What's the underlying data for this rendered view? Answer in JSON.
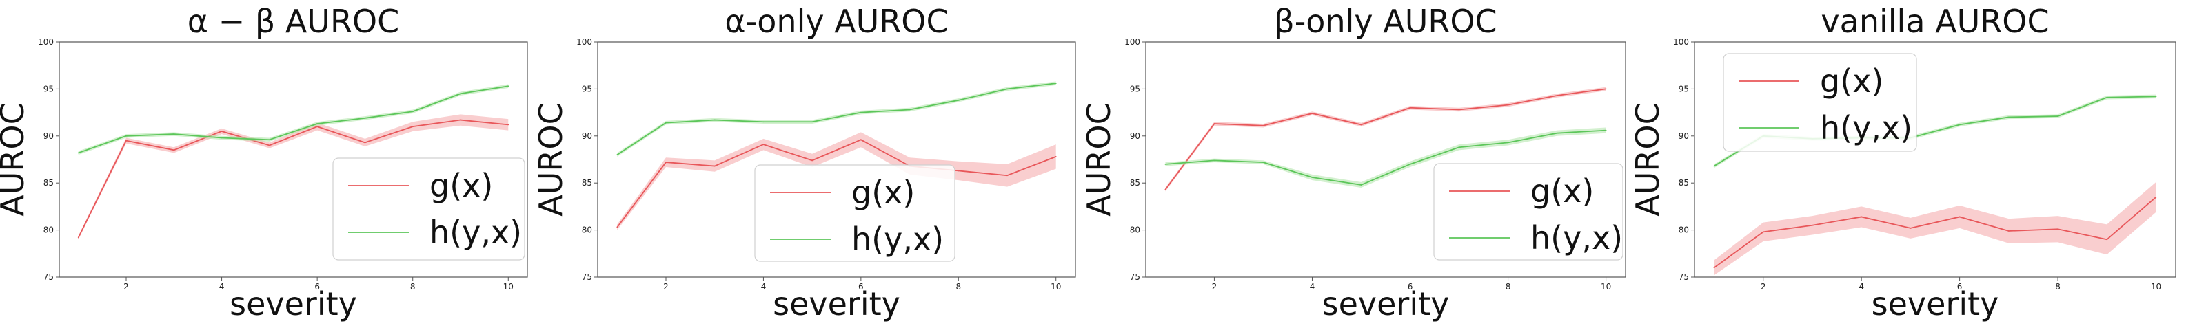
{
  "figure": {
    "background": "#ffffff"
  },
  "colors": {
    "g": "#e8575a",
    "h": "#5cc65a",
    "g_band": "#f4a6a8",
    "h_band": "#aee3a8",
    "axis": "#555555"
  },
  "chart_data": [
    {
      "type": "line",
      "title": "α − β AUROC",
      "xlabel": "severity",
      "ylabel": "AUROC",
      "xlim": [
        0.6,
        10.4
      ],
      "ylim": [
        75,
        100
      ],
      "xticks": [
        2,
        4,
        6,
        8,
        10
      ],
      "yticks": [
        75,
        80,
        85,
        90,
        95,
        100
      ],
      "grid": false,
      "legend": {
        "placement": "lower-right",
        "entries": [
          "g(x)",
          "h(y,x)"
        ]
      },
      "x": [
        1,
        2,
        3,
        4,
        5,
        6,
        7,
        8,
        9,
        10
      ],
      "series": [
        {
          "name": "g(x)",
          "key": "g",
          "values": [
            79.2,
            89.5,
            88.5,
            90.5,
            89.0,
            91.0,
            89.3,
            91.0,
            91.7,
            91.2
          ],
          "band": [
            0.2,
            0.3,
            0.3,
            0.3,
            0.3,
            0.4,
            0.4,
            0.5,
            0.6,
            0.6
          ]
        },
        {
          "name": "h(y,x)",
          "key": "h",
          "values": [
            88.2,
            90.0,
            90.2,
            89.8,
            89.6,
            91.3,
            91.9,
            92.6,
            94.5,
            95.3
          ],
          "band": [
            0.2,
            0.2,
            0.2,
            0.2,
            0.2,
            0.2,
            0.2,
            0.2,
            0.2,
            0.2
          ]
        }
      ]
    },
    {
      "type": "line",
      "title": "α-only AUROC",
      "xlabel": "severity",
      "ylabel": "AUROC",
      "xlim": [
        0.6,
        10.4
      ],
      "ylim": [
        75,
        100
      ],
      "xticks": [
        2,
        4,
        6,
        8,
        10
      ],
      "yticks": [
        75,
        80,
        85,
        90,
        95,
        100
      ],
      "grid": false,
      "legend": {
        "placement": "lower-center",
        "entries": [
          "g(x)",
          "h(y,x)"
        ]
      },
      "x": [
        1,
        2,
        3,
        4,
        5,
        6,
        7,
        8,
        9,
        10
      ],
      "series": [
        {
          "name": "g(x)",
          "key": "g",
          "values": [
            80.3,
            87.2,
            86.8,
            89.1,
            87.4,
            89.6,
            86.8,
            86.3,
            85.8,
            87.8
          ],
          "band": [
            0.3,
            0.5,
            0.6,
            0.6,
            0.7,
            0.8,
            0.9,
            1.0,
            1.2,
            1.3
          ]
        },
        {
          "name": "h(y,x)",
          "key": "h",
          "values": [
            88.0,
            91.4,
            91.7,
            91.5,
            91.5,
            92.5,
            92.8,
            93.8,
            95.0,
            95.6
          ],
          "band": [
            0.2,
            0.2,
            0.2,
            0.2,
            0.2,
            0.2,
            0.2,
            0.2,
            0.2,
            0.2
          ]
        }
      ]
    },
    {
      "type": "line",
      "title": "β-only AUROC",
      "xlabel": "severity",
      "ylabel": "AUROC",
      "xlim": [
        0.6,
        10.4
      ],
      "ylim": [
        75,
        100
      ],
      "xticks": [
        2,
        4,
        6,
        8,
        10
      ],
      "yticks": [
        75,
        80,
        85,
        90,
        95,
        100
      ],
      "grid": false,
      "legend": {
        "placement": "lower-right",
        "entries": [
          "g(x)",
          "h(y,x)"
        ]
      },
      "x": [
        1,
        2,
        3,
        4,
        5,
        6,
        7,
        8,
        9,
        10
      ],
      "series": [
        {
          "name": "g(x)",
          "key": "g",
          "values": [
            84.3,
            91.3,
            91.1,
            92.4,
            91.2,
            93.0,
            92.8,
            93.3,
            94.3,
            95.0
          ],
          "band": [
            0.2,
            0.2,
            0.2,
            0.2,
            0.2,
            0.2,
            0.2,
            0.2,
            0.2,
            0.2
          ]
        },
        {
          "name": "h(y,x)",
          "key": "h",
          "values": [
            87.0,
            87.4,
            87.2,
            85.6,
            84.8,
            87.0,
            88.8,
            89.3,
            90.3,
            90.6
          ],
          "band": [
            0.2,
            0.2,
            0.2,
            0.3,
            0.3,
            0.3,
            0.3,
            0.3,
            0.3,
            0.3
          ]
        }
      ]
    },
    {
      "type": "line",
      "title": "vanilla AUROC",
      "xlabel": "severity",
      "ylabel": "AUROC",
      "xlim": [
        0.6,
        10.4
      ],
      "ylim": [
        75,
        100
      ],
      "xticks": [
        2,
        4,
        6,
        8,
        10
      ],
      "yticks": [
        75,
        80,
        85,
        90,
        95,
        100
      ],
      "grid": false,
      "legend": {
        "placement": "upper-left",
        "entries": [
          "g(x)",
          "h(y,x)"
        ]
      },
      "x": [
        1,
        2,
        3,
        4,
        5,
        6,
        7,
        8,
        9,
        10
      ],
      "series": [
        {
          "name": "g(x)",
          "key": "g",
          "values": [
            76.0,
            79.8,
            80.5,
            81.4,
            80.2,
            81.4,
            79.9,
            80.1,
            79.0,
            83.5
          ],
          "band": [
            0.8,
            1.0,
            1.0,
            1.1,
            1.1,
            1.2,
            1.3,
            1.4,
            1.6,
            1.6
          ]
        },
        {
          "name": "h(y,x)",
          "key": "h",
          "values": [
            86.8,
            90.0,
            89.7,
            89.8,
            89.8,
            91.2,
            92.0,
            92.1,
            94.1,
            94.2
          ],
          "band": [
            0.2,
            0.2,
            0.2,
            0.2,
            0.2,
            0.2,
            0.2,
            0.2,
            0.2,
            0.2
          ]
        }
      ]
    }
  ]
}
